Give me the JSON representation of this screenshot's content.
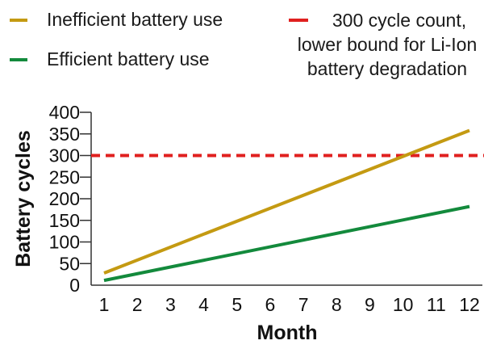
{
  "chart_data": {
    "type": "line",
    "title": "",
    "xlabel": "Month",
    "ylabel": "Battery cycles",
    "x": [
      1,
      12
    ],
    "xticks": [
      "1",
      "2",
      "3",
      "4",
      "5",
      "6",
      "7",
      "8",
      "9",
      "10",
      "11",
      "12"
    ],
    "yticks": [
      "0",
      "50",
      "100",
      "150",
      "200",
      "250",
      "300",
      "350",
      "400"
    ],
    "xlim": [
      1,
      12
    ],
    "ylim": [
      0,
      400
    ],
    "grid": false,
    "legend_position": "top",
    "series": [
      {
        "name": "Inefficient battery use",
        "color": "#c49a12",
        "x": [
          1,
          12
        ],
        "values": [
          28,
          358
        ]
      },
      {
        "name": "Efficient battery use",
        "color": "#138a3c",
        "x": [
          1,
          12
        ],
        "values": [
          11,
          182
        ]
      }
    ],
    "reference_lines": [
      {
        "y": 300,
        "color": "#e0201f",
        "style": "dashed",
        "label": [
          "300 cycle count,",
          "lower bound for Li-Ion",
          "battery degradation"
        ]
      }
    ]
  }
}
